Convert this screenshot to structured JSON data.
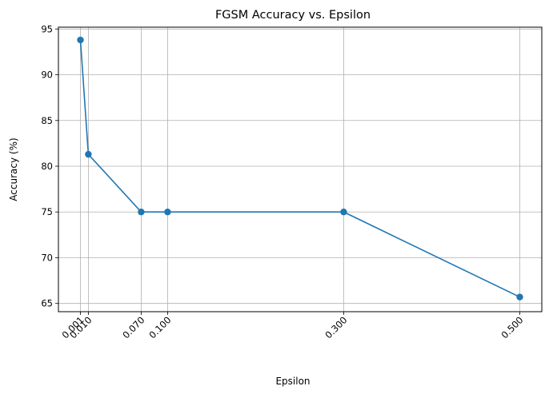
{
  "chart_data": {
    "type": "line",
    "title": "FGSM Accuracy vs. Epsilon",
    "xlabel": "Epsilon",
    "ylabel": "Accuracy (%)",
    "xlim": [
      -0.024,
      0.525
    ],
    "ylim": [
      64.1,
      95.2
    ],
    "xticks": [
      0.001,
      0.01,
      0.07,
      0.1,
      0.3,
      0.5
    ],
    "xtick_labels": [
      "0.001",
      "0.010",
      "0.070",
      "0.100",
      "0.300",
      "0.500"
    ],
    "yticks": [
      65,
      70,
      75,
      80,
      85,
      90,
      95
    ],
    "ytick_labels": [
      "65",
      "70",
      "75",
      "80",
      "85",
      "90",
      "95"
    ],
    "grid": true,
    "series": [
      {
        "color": "#1f77b4",
        "marker": "circle",
        "x": [
          0.001,
          0.01,
          0.07,
          0.1,
          0.3,
          0.5
        ],
        "y": [
          93.8,
          81.3,
          75.0,
          75.0,
          75.0,
          65.7
        ]
      }
    ]
  }
}
